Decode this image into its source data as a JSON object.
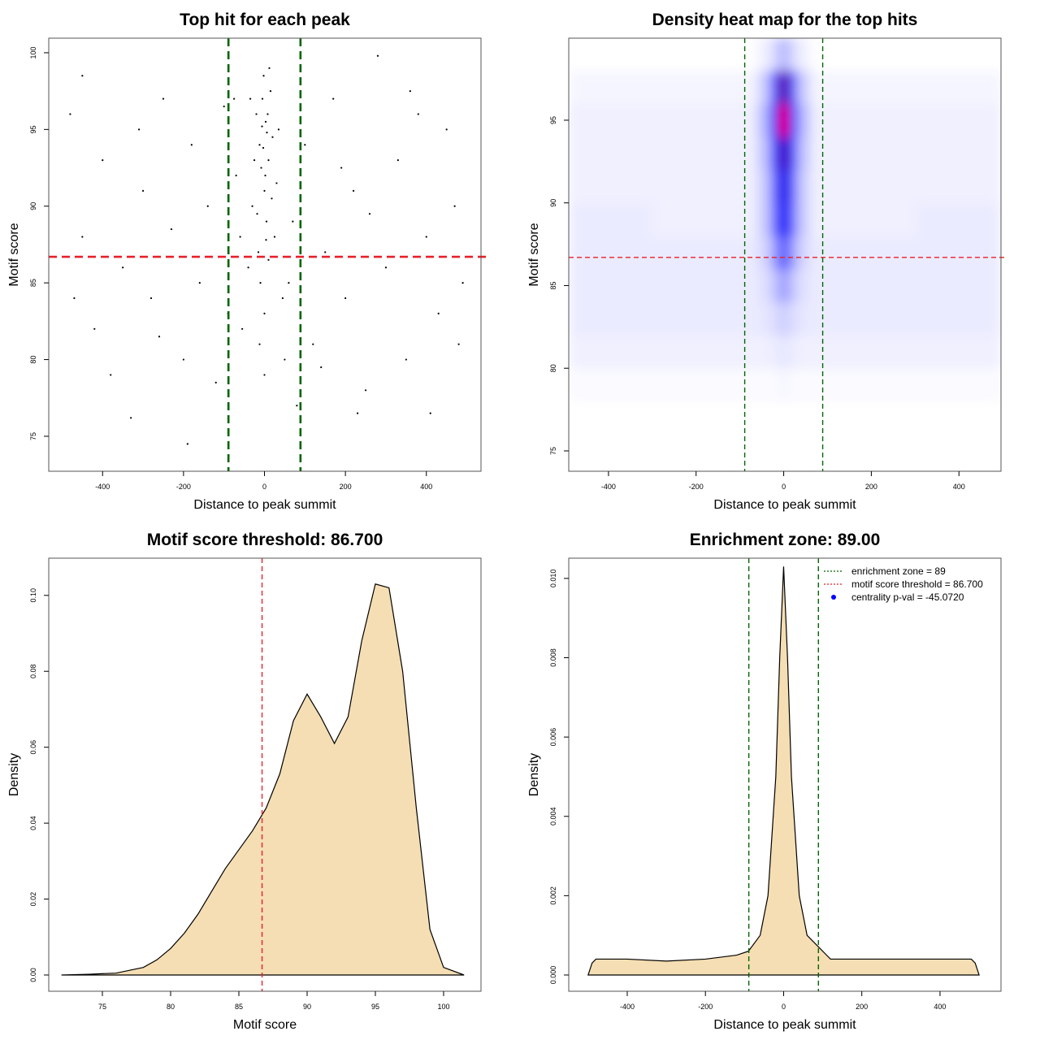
{
  "chart_data": [
    {
      "type": "scatter",
      "title": "Top hit for each peak",
      "xlabel": "Distance to peak summit",
      "ylabel": "Motif score",
      "xlim": [
        -533,
        535
      ],
      "ylim": [
        72.72,
        100.95
      ],
      "xticks": [
        -400,
        -200,
        0,
        200,
        400
      ],
      "yticks": [
        75,
        80,
        85,
        90,
        95,
        100
      ],
      "series": [
        {
          "color": "#000000",
          "x": [
            -5,
            3,
            -12,
            10,
            0,
            -20,
            15,
            -8,
            5,
            -30,
            25,
            -2,
            8,
            -15,
            20,
            -25,
            30,
            -40,
            45,
            0,
            -10,
            12,
            -3,
            6,
            -6,
            2,
            18,
            -18,
            35,
            -35,
            50,
            -55,
            0,
            10,
            -12,
            4,
            -480,
            -450,
            -420,
            -400,
            -380,
            -350,
            -330,
            -300,
            -280,
            -250,
            -230,
            -200,
            -180,
            -160,
            -140,
            -120,
            -100,
            -90,
            -70,
            -450,
            -470,
            -260,
            -190,
            -310,
            70,
            100,
            120,
            150,
            170,
            200,
            220,
            250,
            280,
            300,
            330,
            350,
            380,
            400,
            430,
            450,
            470,
            490,
            410,
            230,
            140,
            360,
            260,
            190,
            480,
            60,
            -60,
            -75,
            80
          ],
          "values": [
            97,
            95.5,
            94,
            93,
            91,
            96,
            97.5,
            92.5,
            89,
            90,
            88,
            98.5,
            96,
            87,
            94.5,
            93,
            91.5,
            86,
            84,
            83,
            85,
            99,
            93.8,
            94.8,
            95.2,
            92,
            90.5,
            89.5,
            95,
            97,
            80,
            82,
            79,
            86.5,
            81,
            87.8,
            96,
            88,
            82,
            93,
            79,
            86,
            76.2,
            91,
            84,
            97,
            88.5,
            80,
            94,
            85,
            90,
            78.5,
            96.5,
            83,
            92,
            98.5,
            84,
            81.5,
            74.5,
            95,
            89,
            94,
            81,
            87,
            97,
            84,
            91,
            78,
            99.8,
            86,
            93,
            80,
            96,
            88,
            83,
            95,
            90,
            85,
            76.5,
            76.5,
            79.5,
            97.5,
            89.5,
            92.5,
            81,
            85,
            88,
            97,
            77
          ]
        }
      ],
      "hlines": [
        {
          "value": 86.7,
          "color": "#e8202a"
        }
      ],
      "vlines": [
        {
          "value": -89,
          "color": "#006400"
        },
        {
          "value": 89,
          "color": "#006400"
        }
      ]
    },
    {
      "type": "heatmap",
      "title": "Density heat map for the top hits",
      "xlabel": "Distance to peak summit",
      "ylabel": "Motif score",
      "xlim": [
        -490.7,
        496
      ],
      "ylim": [
        73.77,
        99.96
      ],
      "xticks": [
        -400,
        -200,
        0,
        200,
        400
      ],
      "yticks": [
        75,
        80,
        85,
        90,
        95
      ],
      "colors": [
        "#ffffff",
        "#0000ff",
        "#ff0000"
      ],
      "zlim": [
        0,
        1
      ],
      "x_edges": [
        -490,
        -300,
        -150,
        -60,
        -30,
        -10,
        10,
        30,
        60,
        150,
        300,
        496
      ],
      "y_edges": [
        78,
        80,
        82,
        84,
        86,
        88,
        90,
        92,
        94,
        96,
        98,
        100
      ],
      "z": [
        [
          0.01,
          0.01,
          0.01,
          0.01,
          0.01,
          0.02,
          0.01,
          0.01,
          0.01,
          0.01,
          0.01
        ],
        [
          0.03,
          0.03,
          0.03,
          0.03,
          0.04,
          0.05,
          0.04,
          0.03,
          0.03,
          0.03,
          0.03
        ],
        [
          0.04,
          0.04,
          0.04,
          0.05,
          0.07,
          0.1,
          0.07,
          0.05,
          0.04,
          0.04,
          0.04
        ],
        [
          0.04,
          0.04,
          0.04,
          0.06,
          0.12,
          0.2,
          0.12,
          0.06,
          0.04,
          0.04,
          0.04
        ],
        [
          0.04,
          0.04,
          0.04,
          0.08,
          0.2,
          0.35,
          0.2,
          0.08,
          0.04,
          0.04,
          0.04
        ],
        [
          0.04,
          0.03,
          0.03,
          0.1,
          0.3,
          0.52,
          0.3,
          0.1,
          0.03,
          0.03,
          0.04
        ],
        [
          0.03,
          0.03,
          0.03,
          0.1,
          0.32,
          0.55,
          0.32,
          0.1,
          0.03,
          0.03,
          0.03
        ],
        [
          0.03,
          0.03,
          0.03,
          0.12,
          0.38,
          0.65,
          0.38,
          0.12,
          0.03,
          0.03,
          0.03
        ],
        [
          0.03,
          0.03,
          0.03,
          0.14,
          0.5,
          1.0,
          0.5,
          0.14,
          0.03,
          0.03,
          0.03
        ],
        [
          0.02,
          0.02,
          0.02,
          0.1,
          0.35,
          0.7,
          0.35,
          0.1,
          0.02,
          0.02,
          0.02
        ],
        [
          0,
          0,
          0,
          0.03,
          0.08,
          0.15,
          0.08,
          0.03,
          0,
          0,
          0
        ]
      ],
      "hlines": [
        {
          "value": 86.7,
          "color": "#e8202a"
        }
      ],
      "vlines": [
        {
          "value": -89,
          "color": "#006400"
        },
        {
          "value": 89,
          "color": "#006400"
        }
      ]
    },
    {
      "type": "density",
      "title": "Motif score threshold: 86.700",
      "xlabel": "Motif score",
      "ylabel": "Density",
      "xlim": [
        71.07,
        102.74
      ],
      "ylim": [
        -0.00428,
        0.1098
      ],
      "xticks": [
        75,
        80,
        85,
        90,
        95,
        100
      ],
      "yticks": [
        {
          "value": 0,
          "label": "0.00"
        },
        0.02,
        0.04,
        0.06,
        0.08,
        {
          "value": 0.1,
          "label": "0.10"
        }
      ],
      "fill": "#f5deb3",
      "x": [
        72,
        74,
        76,
        78,
        79,
        80,
        81,
        82,
        83,
        84,
        85,
        86,
        87,
        88,
        89,
        90,
        91,
        92,
        93,
        94,
        95,
        96,
        97,
        98,
        99,
        100,
        101.5
      ],
      "values": [
        0,
        0.0002,
        0.0005,
        0.002,
        0.004,
        0.007,
        0.011,
        0.016,
        0.022,
        0.028,
        0.033,
        0.038,
        0.044,
        0.053,
        0.067,
        0.074,
        0.068,
        0.061,
        0.068,
        0.088,
        0.103,
        0.102,
        0.08,
        0.044,
        0.012,
        0.002,
        0
      ],
      "vlines": [
        {
          "value": 86.7,
          "color": "#e8202a"
        }
      ]
    },
    {
      "type": "density",
      "title": "Enrichment zone: 89.00",
      "xlabel": "Distance to peak summit",
      "ylabel": "Density",
      "xlim": [
        -549.6,
        556
      ],
      "ylim": [
        -0.00041,
        0.01051
      ],
      "xticks": [
        -400,
        -200,
        0,
        200,
        400
      ],
      "yticks": [
        {
          "value": 0,
          "label": "0.000"
        },
        0.002,
        0.004,
        0.006,
        0.008,
        {
          "value": 0.01,
          "label": "0.010"
        }
      ],
      "fill": "#f5deb3",
      "x": [
        -500,
        -490,
        -480,
        -400,
        -300,
        -200,
        -120,
        -90,
        -60,
        -40,
        -20,
        -10,
        0,
        10,
        20,
        40,
        60,
        90,
        120,
        200,
        300,
        400,
        480,
        490,
        500
      ],
      "values": [
        0,
        0.0003,
        0.0004,
        0.0004,
        0.00035,
        0.0004,
        0.0005,
        0.0006,
        0.001,
        0.002,
        0.005,
        0.008,
        0.0103,
        0.008,
        0.005,
        0.002,
        0.001,
        0.0007,
        0.0004,
        0.0004,
        0.0004,
        0.0004,
        0.0004,
        0.0003,
        0
      ],
      "vlines": [
        {
          "value": -89,
          "color": "#006400"
        },
        {
          "value": 89,
          "color": "#006400"
        }
      ],
      "legend_position": "topright",
      "legend": [
        {
          "label": "enrichment zone = 89",
          "color": "#006400",
          "symbol": "dotted"
        },
        {
          "label": "motif score threshold = 86.700",
          "color": "#e8202a",
          "symbol": "dotted"
        },
        {
          "label": "centrality p-val = -45.0720",
          "color": "#0000ff",
          "symbol": "point"
        }
      ]
    }
  ]
}
